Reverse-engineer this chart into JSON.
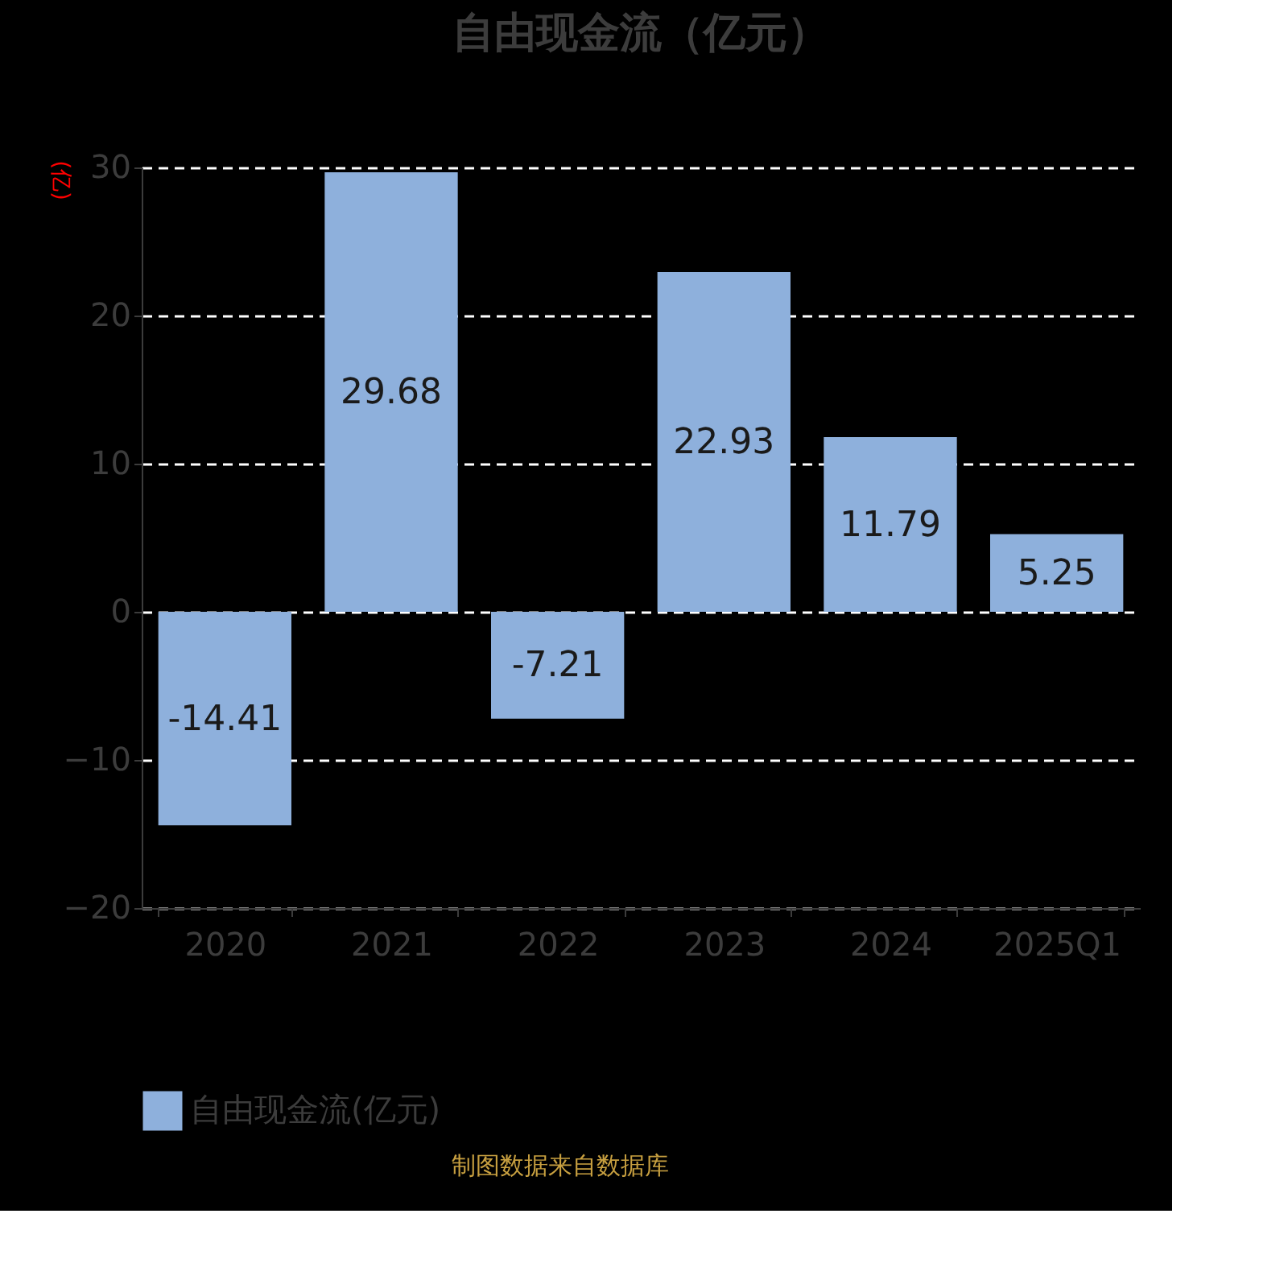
{
  "chart_data": {
    "type": "bar",
    "title": "自由现金流（亿元）",
    "ylabel": "(亿)",
    "categories": [
      "2020",
      "2021",
      "2022",
      "2023",
      "2024",
      "2025Q1"
    ],
    "series": [
      {
        "name": "自由现金流(亿元)",
        "color": "#8eb0dc",
        "values": [
          -14.41,
          29.68,
          -7.21,
          22.93,
          11.79,
          5.25
        ]
      }
    ],
    "ylim": [
      -20,
      30
    ],
    "yticks": [
      -20,
      -10,
      0,
      10,
      20,
      30
    ],
    "grid": "y",
    "data_labels": true,
    "legend": "bottom",
    "annotations": [
      "制图数据来自数据库"
    ]
  }
}
